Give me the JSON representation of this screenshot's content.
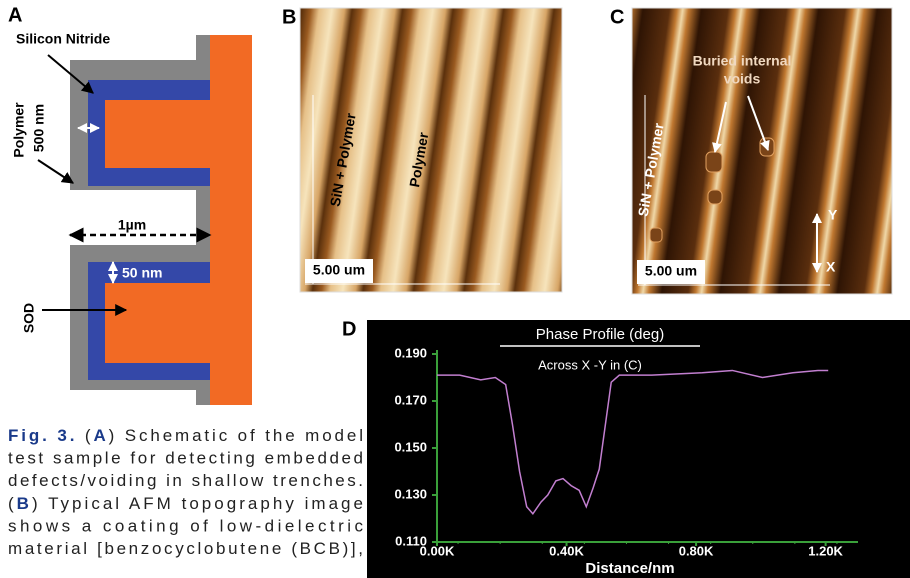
{
  "panels": {
    "a": {
      "label": "A",
      "silicon_nitride": "Silicon Nitride",
      "dim_500": "500 nm",
      "polymer": "Polymer",
      "dim_1um": "1µm",
      "dim_50": "50 nm",
      "sod": "SOD"
    },
    "b": {
      "label": "B",
      "sin_polymer": "SiN + Polymer",
      "polymer": "Polymer",
      "scale_bar": "5.00 um"
    },
    "c": {
      "label": "C",
      "voids_1": "Buried internal",
      "voids_2": "voids",
      "sin_polymer": "SiN + Polymer",
      "y_mark": "Y",
      "x_mark": "X",
      "scale_bar": "5.00 um"
    },
    "d": {
      "label": "D"
    }
  },
  "caption": [
    [
      {
        "text": "Fig. 3.",
        "bold": true
      },
      {
        "text": " ("
      },
      {
        "text": "A",
        "bold": true
      },
      {
        "text": ") Schematic of the model"
      }
    ],
    [
      {
        "text": "test sample for detecting embedded"
      }
    ],
    [
      {
        "text": "defects/voiding in shallow trenches."
      }
    ],
    [
      {
        "text": "("
      },
      {
        "text": "B",
        "bold": true
      },
      {
        "text": ") Typical AFM topography image"
      }
    ],
    [
      {
        "text": "shows a coating of low-dielectric"
      }
    ],
    [
      {
        "text": "material [benzocyclobutene (BCB)],"
      }
    ]
  ],
  "chart_data": {
    "type": "line",
    "title": "Phase Profile (deg)",
    "subtitle": "Across X -Y in (C)",
    "x_label": "Distance/nm",
    "x": [
      0,
      70,
      135,
      180,
      212,
      233,
      255,
      277,
      296,
      321,
      342,
      367,
      389,
      414,
      439,
      461,
      482,
      501,
      520,
      538,
      563,
      663,
      819,
      912,
      1005,
      1099,
      1176,
      1208
    ],
    "series": [
      {
        "color": "#c27fd0",
        "values": [
          0.181,
          0.181,
          0.179,
          0.18,
          0.177,
          0.16,
          0.14,
          0.125,
          0.122,
          0.127,
          0.13,
          0.136,
          0.137,
          0.134,
          0.132,
          0.125,
          0.133,
          0.141,
          0.16,
          0.178,
          0.181,
          0.181,
          0.182,
          0.183,
          0.18,
          0.182,
          0.183,
          0.183
        ]
      }
    ],
    "xlim": [
      0,
      1300
    ],
    "ylim": [
      0.11,
      0.19
    ],
    "xticks": [
      {
        "value": 0,
        "label": "0.00K"
      },
      {
        "value": 400,
        "label": "0.40K"
      },
      {
        "value": 800,
        "label": "0.80K"
      },
      {
        "value": 1200,
        "label": "1.20K"
      }
    ],
    "yticks": [
      {
        "value": 0.11,
        "label": "0.110"
      },
      {
        "value": 0.13,
        "label": "0.130"
      },
      {
        "value": 0.15,
        "label": "0.150"
      },
      {
        "value": 0.17,
        "label": "0.170"
      },
      {
        "value": 0.19,
        "label": "0.190"
      }
    ],
    "axis_color": "#3aa03a",
    "background": "#000000"
  }
}
